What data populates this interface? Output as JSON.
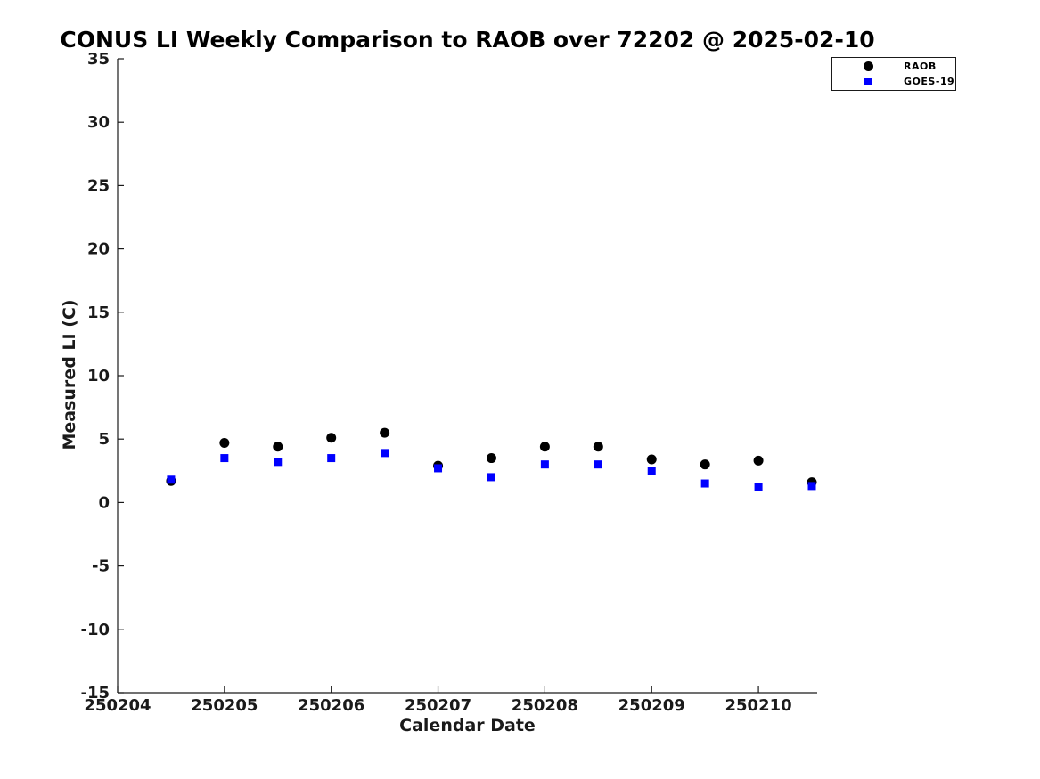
{
  "chart_data": {
    "type": "scatter",
    "title": "CONUS LI Weekly Comparison to RAOB over 72202 @ 2025-02-10",
    "xlabel": "Calendar Date",
    "ylabel": "Measured LI (C)",
    "xlim": [
      250204,
      250210.55
    ],
    "ylim": [
      -15,
      35
    ],
    "xticks": [
      250204,
      250205,
      250206,
      250207,
      250208,
      250209,
      250210
    ],
    "yticks": [
      -15,
      -10,
      -5,
      0,
      5,
      10,
      15,
      20,
      25,
      30,
      35
    ],
    "grid": false,
    "legend_position": "outside-top-right",
    "x": [
      250204.5,
      250205.0,
      250205.5,
      250206.0,
      250206.5,
      250207.0,
      250207.5,
      250208.0,
      250208.5,
      250209.0,
      250209.5,
      250210.0,
      250210.5
    ],
    "series": [
      {
        "name": "RAOB",
        "marker": "circle",
        "color": "#000000",
        "values": [
          1.7,
          4.7,
          4.4,
          5.1,
          5.5,
          2.9,
          3.5,
          4.4,
          4.4,
          3.4,
          3.0,
          3.3,
          1.6
        ]
      },
      {
        "name": "GOES-19",
        "marker": "square",
        "color": "#0000ff",
        "values": [
          1.8,
          3.5,
          3.2,
          3.5,
          3.9,
          2.7,
          2.0,
          3.0,
          3.0,
          2.5,
          1.5,
          1.2,
          1.3
        ]
      }
    ]
  }
}
